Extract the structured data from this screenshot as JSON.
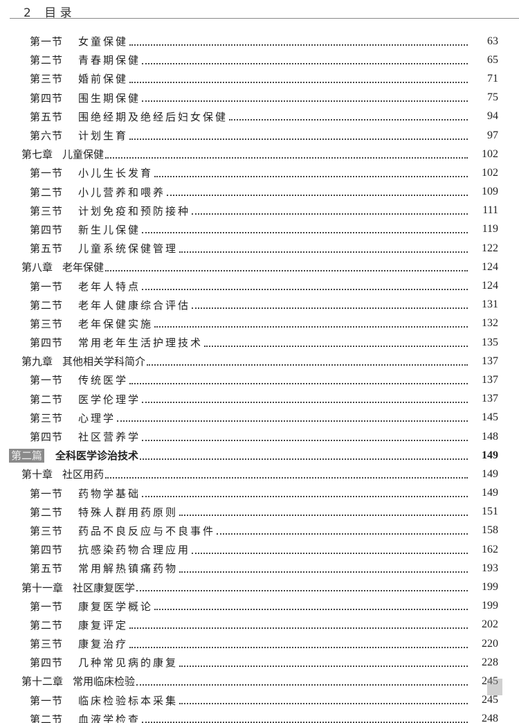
{
  "header": {
    "page_number": "2",
    "title": "目 录"
  },
  "entries": [
    {
      "level": "section",
      "num": "第一节",
      "title": "女童保健",
      "page": "63"
    },
    {
      "level": "section",
      "num": "第二节",
      "title": "青春期保健",
      "page": "65"
    },
    {
      "level": "section",
      "num": "第三节",
      "title": "婚前保健",
      "page": "71"
    },
    {
      "level": "section",
      "num": "第四节",
      "title": "围生期保健",
      "page": "75"
    },
    {
      "level": "section",
      "num": "第五节",
      "title": "围绝经期及绝经后妇女保健",
      "page": "94"
    },
    {
      "level": "section",
      "num": "第六节",
      "title": "计划生育",
      "page": "97"
    },
    {
      "level": "chapter",
      "num": "第七章",
      "title": "儿童保健",
      "page": "102"
    },
    {
      "level": "section",
      "num": "第一节",
      "title": "小儿生长发育",
      "page": "102"
    },
    {
      "level": "section",
      "num": "第二节",
      "title": "小儿营养和喂养",
      "page": "109"
    },
    {
      "level": "section",
      "num": "第三节",
      "title": "计划免疫和预防接种",
      "page": "111"
    },
    {
      "level": "section",
      "num": "第四节",
      "title": "新生儿保健",
      "page": "119"
    },
    {
      "level": "section",
      "num": "第五节",
      "title": "儿童系统保健管理",
      "page": "122"
    },
    {
      "level": "chapter",
      "num": "第八章",
      "title": "老年保健",
      "page": "124"
    },
    {
      "level": "section",
      "num": "第一节",
      "title": "老年人特点",
      "page": "124"
    },
    {
      "level": "section",
      "num": "第二节",
      "title": "老年人健康综合评估",
      "page": "131"
    },
    {
      "level": "section",
      "num": "第三节",
      "title": "老年保健实施",
      "page": "132"
    },
    {
      "level": "section",
      "num": "第四节",
      "title": "常用老年生活护理技术",
      "page": "135"
    },
    {
      "level": "chapter",
      "num": "第九章",
      "title": "其他相关学科简介",
      "page": "137"
    },
    {
      "level": "section",
      "num": "第一节",
      "title": "传统医学",
      "page": "137"
    },
    {
      "level": "section",
      "num": "第二节",
      "title": "医学伦理学",
      "page": "137"
    },
    {
      "level": "section",
      "num": "第三节",
      "title": "心理学",
      "page": "145"
    },
    {
      "level": "section",
      "num": "第四节",
      "title": "社区营养学",
      "page": "148"
    },
    {
      "level": "part",
      "num": "第二篇",
      "title": "全科医学诊治技术",
      "page": "149"
    },
    {
      "level": "chapter",
      "num": "第十章",
      "title": "社区用药",
      "page": "149"
    },
    {
      "level": "section",
      "num": "第一节",
      "title": "药物学基础",
      "page": "149"
    },
    {
      "level": "section",
      "num": "第二节",
      "title": "特殊人群用药原则",
      "page": "151"
    },
    {
      "level": "section",
      "num": "第三节",
      "title": "药品不良反应与不良事件",
      "page": "158"
    },
    {
      "level": "section",
      "num": "第四节",
      "title": "抗感染药物合理应用",
      "page": "162"
    },
    {
      "level": "section",
      "num": "第五节",
      "title": "常用解热镇痛药物",
      "page": "193"
    },
    {
      "level": "chapter",
      "num": "第十一章",
      "title": "社区康复医学",
      "page": "199"
    },
    {
      "level": "section",
      "num": "第一节",
      "title": "康复医学概论",
      "page": "199"
    },
    {
      "level": "section",
      "num": "第二节",
      "title": "康复评定",
      "page": "202"
    },
    {
      "level": "section",
      "num": "第三节",
      "title": "康复治疗",
      "page": "220"
    },
    {
      "level": "section",
      "num": "第四节",
      "title": "几种常见病的康复",
      "page": "228"
    },
    {
      "level": "chapter",
      "num": "第十二章",
      "title": "常用临床检验",
      "page": "245"
    },
    {
      "level": "section",
      "num": "第一节",
      "title": "临床检验标本采集",
      "page": "245"
    },
    {
      "level": "section",
      "num": "第二节",
      "title": "血液学检查",
      "page": "248"
    }
  ]
}
